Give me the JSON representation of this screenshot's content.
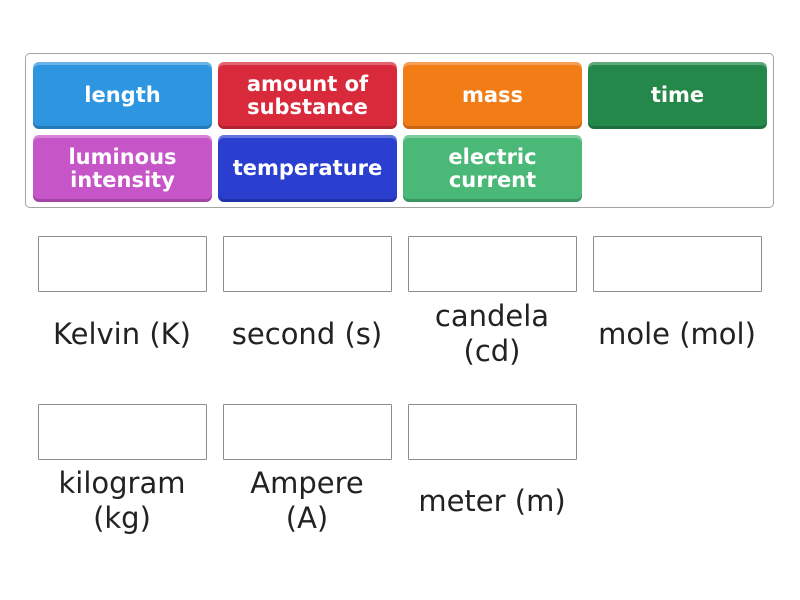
{
  "tiles": [
    {
      "label": "length",
      "color": "#2e96e0"
    },
    {
      "label": "amount of substance",
      "color": "#d92a3c"
    },
    {
      "label": "mass",
      "color": "#f27c16"
    },
    {
      "label": "time",
      "color": "#23884a"
    },
    {
      "label": "luminous intensity",
      "color": "#c655c8"
    },
    {
      "label": "temperature",
      "color": "#2a3fd0"
    },
    {
      "label": "electric current",
      "color": "#4ab877"
    }
  ],
  "units": [
    {
      "label": "Kelvin (K)"
    },
    {
      "label": "second (s)"
    },
    {
      "label": "candela (cd)"
    },
    {
      "label": "mole (mol)"
    },
    {
      "label": "kilogram (kg)"
    },
    {
      "label": "Ampere (A)"
    },
    {
      "label": "meter (m)"
    }
  ]
}
